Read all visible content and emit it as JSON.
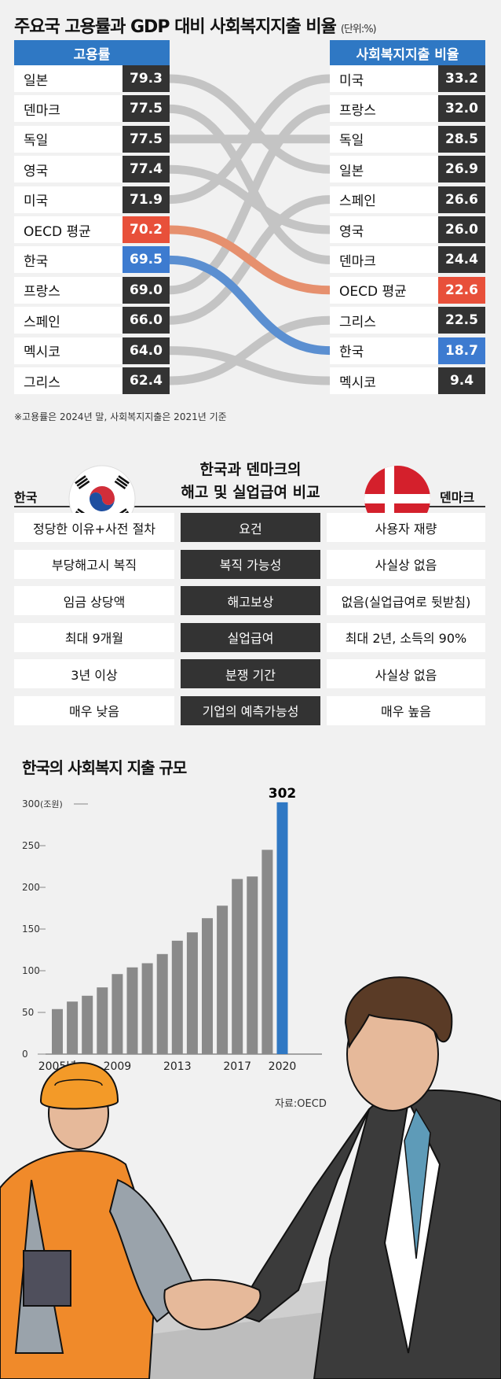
{
  "chart1": {
    "title": "주요국 고용률과 GDP 대비 사회복지지출 비율",
    "unit": "(단위:%)",
    "left_header": "고용률",
    "right_header": "사회복지지출 비율",
    "note": "※고용률은 2024년 말, 사회복지지출은 2021년 기준"
  },
  "chart2": {
    "title_line1": "한국과 덴마크의",
    "title_line2": "해고 및 실업급여 비교",
    "left_country": "한국",
    "right_country": "덴마크",
    "rows": [
      {
        "korea": "정당한 이유+사전 절차",
        "item": "요건",
        "denmark": "사용자 재량"
      },
      {
        "korea": "부당해고시 복직",
        "item": "복직 가능성",
        "denmark": "사실상 없음"
      },
      {
        "korea": "임금 상당액",
        "item": "해고보상",
        "denmark": "없음(실업급여로 뒷받침)"
      },
      {
        "korea": "최대 9개월",
        "item": "실업급여",
        "denmark": "최대 2년, 소득의 90%"
      },
      {
        "korea": "3년 이상",
        "item": "분쟁 기간",
        "denmark": "사실상 없음"
      },
      {
        "korea": "매우 낮음",
        "item": "기업의 예측가능성",
        "denmark": "매우 높음"
      }
    ]
  },
  "chart3": {
    "title": "한국의 사회복지 지출 규모",
    "y_unit": "(조원)",
    "highlight_label": "302",
    "x_tick_labels": [
      "2005년",
      "2009",
      "2013",
      "2017",
      "2020"
    ],
    "source": "자료:OECD"
  },
  "colors": {
    "accent": "#2f78c4",
    "red": "#e8503a",
    "blue": "#3d7bd0",
    "dark": "#333333",
    "line": "#bdbdbd"
  },
  "chart_data": [
    {
      "type": "bump",
      "title": "주요국 고용률과 GDP 대비 사회복지지출 비율",
      "unit": "%",
      "employment_rate": [
        {
          "country": "일본",
          "value": 79.3
        },
        {
          "country": "덴마크",
          "value": 77.5
        },
        {
          "country": "독일",
          "value": 77.5
        },
        {
          "country": "영국",
          "value": 77.4
        },
        {
          "country": "미국",
          "value": 71.9
        },
        {
          "country": "OECD 평균",
          "value": 70.2,
          "highlight": "red"
        },
        {
          "country": "한국",
          "value": 69.5,
          "highlight": "blue"
        },
        {
          "country": "프랑스",
          "value": 69.0
        },
        {
          "country": "스페인",
          "value": 66.0
        },
        {
          "country": "멕시코",
          "value": 64.0
        },
        {
          "country": "그리스",
          "value": 62.4
        }
      ],
      "social_spending": [
        {
          "country": "미국",
          "value": 33.2
        },
        {
          "country": "프랑스",
          "value": 32.0
        },
        {
          "country": "독일",
          "value": 28.5
        },
        {
          "country": "일본",
          "value": 26.9
        },
        {
          "country": "스페인",
          "value": 26.6
        },
        {
          "country": "영국",
          "value": 26.0
        },
        {
          "country": "덴마크",
          "value": 24.4
        },
        {
          "country": "OECD 평균",
          "value": 22.6,
          "highlight": "red"
        },
        {
          "country": "그리스",
          "value": 22.5
        },
        {
          "country": "한국",
          "value": 18.7,
          "highlight": "blue"
        },
        {
          "country": "멕시코",
          "value": 9.4
        }
      ]
    },
    {
      "type": "bar",
      "title": "한국의 사회복지 지출 규모",
      "ylabel": "(조원)",
      "x": [
        2005,
        2006,
        2007,
        2008,
        2009,
        2010,
        2011,
        2012,
        2013,
        2014,
        2015,
        2016,
        2017,
        2018,
        2019,
        2020
      ],
      "values": [
        54,
        63,
        70,
        80,
        96,
        104,
        109,
        120,
        136,
        146,
        163,
        178,
        210,
        213,
        245,
        302
      ],
      "ylim": [
        0,
        300
      ],
      "yticks": [
        0,
        50,
        100,
        150,
        200,
        250,
        300
      ],
      "highlight": {
        "x": 2020,
        "color": "#2f78c4"
      }
    }
  ]
}
